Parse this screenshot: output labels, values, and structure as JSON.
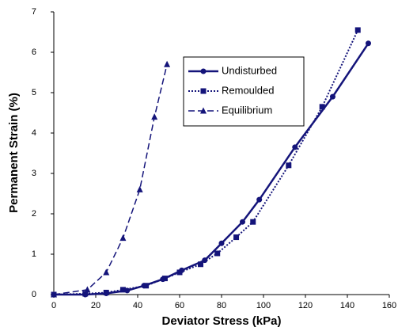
{
  "chart_data": {
    "type": "line",
    "x_label": "Deviator Stress (kPa)",
    "y_label": "Permanent Strain (%)",
    "xlim": [
      0,
      160
    ],
    "xticks": [
      0,
      20,
      40,
      60,
      80,
      100,
      120,
      140,
      160
    ],
    "ylim": [
      0,
      7
    ],
    "yticks": [
      0,
      1,
      2,
      3,
      4,
      5,
      6,
      7
    ],
    "grid": false,
    "legend": "upper center",
    "series": [
      {
        "name": "Undisturbed",
        "color": "#14147a",
        "dash": "solid",
        "marker": "circle",
        "x": [
          0,
          15,
          25,
          35,
          43,
          52,
          61,
          72,
          80,
          90,
          98,
          115,
          133,
          150
        ],
        "values": [
          0,
          0,
          0.03,
          0.1,
          0.22,
          0.38,
          0.6,
          0.85,
          1.27,
          1.8,
          2.35,
          3.65,
          4.9,
          6.22
        ]
      },
      {
        "name": "Remoulded",
        "color": "#14147a",
        "dash": "dotted",
        "marker": "square",
        "x": [
          0,
          15,
          25,
          33,
          44,
          53,
          60,
          70,
          78,
          87,
          95,
          112,
          128,
          145
        ],
        "values": [
          0,
          0.02,
          0.05,
          0.12,
          0.22,
          0.4,
          0.55,
          0.75,
          1.02,
          1.42,
          1.8,
          3.2,
          4.65,
          6.55
        ]
      },
      {
        "name": "Equilibrium",
        "color": "#14147a",
        "dash": "dashed",
        "marker": "triangle",
        "x": [
          0,
          16,
          25,
          33,
          41,
          48,
          54
        ],
        "values": [
          0,
          0.12,
          0.55,
          1.4,
          2.6,
          4.4,
          5.7
        ]
      }
    ]
  }
}
